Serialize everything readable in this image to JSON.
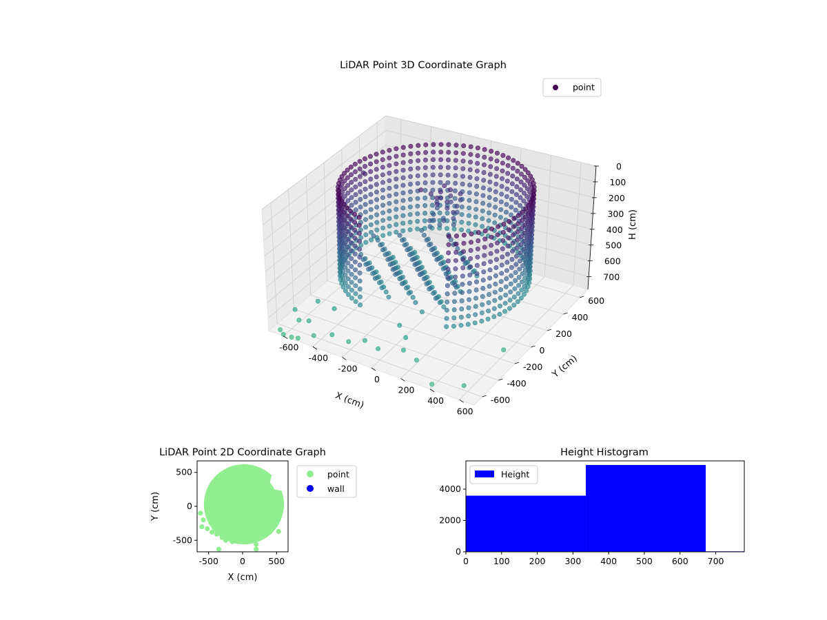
{
  "chart_data": [
    {
      "id": "3d",
      "type": "scatter",
      "title": "LiDAR Point 3D Coordinate Graph",
      "xlabel": "X (cm)",
      "ylabel": "Y (cm)",
      "zlabel": "H (cm)",
      "xlim": [
        -700,
        700
      ],
      "ylim": [
        -700,
        700
      ],
      "zlim": [
        0,
        780
      ],
      "z_axis_inverted": true,
      "xticks": [
        -600,
        -400,
        -200,
        0,
        200,
        400,
        600
      ],
      "yticks": [
        -600,
        -400,
        -200,
        0,
        200,
        400,
        600
      ],
      "zticks": [
        0,
        100,
        200,
        300,
        400,
        500,
        600,
        700
      ],
      "grid": true,
      "colormap": "viridis (colored by height)",
      "legend": {
        "position": "top-right",
        "entries": [
          {
            "label": "point",
            "color": "#440154"
          }
        ]
      },
      "series": [
        {
          "name": "point",
          "description": "Dense cylindrical ring of points, radius ~560 cm, H 0 to ~560 cm with an open front; a concentrated cluster around x=-150..50, y=150..350 at low H; scattered outliers near the floor.",
          "ring": {
            "center_x": 20,
            "center_y": 30,
            "radius": 560,
            "h_range": [
              0,
              560
            ],
            "open_angle_range_deg": [
              -110,
              -55
            ]
          },
          "floor_cluster": {
            "x_range": [
              -350,
              250
            ],
            "y_range": [
              -350,
              200
            ],
            "h_range": [
              360,
              560
            ]
          },
          "outliers": [
            {
              "x": -620,
              "y": -520,
              "h": 700
            },
            {
              "x": -560,
              "y": -580,
              "h": 720
            },
            {
              "x": -480,
              "y": -600,
              "h": 690
            },
            {
              "x": -420,
              "y": -650,
              "h": 740
            },
            {
              "x": -300,
              "y": -640,
              "h": 700
            },
            {
              "x": -200,
              "y": -620,
              "h": 720
            },
            {
              "x": -100,
              "y": -600,
              "h": 690
            },
            {
              "x": 0,
              "y": -620,
              "h": 700
            },
            {
              "x": 150,
              "y": -580,
              "h": 680
            },
            {
              "x": 250,
              "y": -600,
              "h": 700
            },
            {
              "x": -520,
              "y": -420,
              "h": 660
            },
            {
              "x": -380,
              "y": -470,
              "h": 640
            },
            {
              "x": 50,
              "y": -450,
              "h": 620
            },
            {
              "x": 120,
              "y": -500,
              "h": 650
            },
            {
              "x": -650,
              "y": -650,
              "h": 780
            },
            {
              "x": -600,
              "y": -700,
              "h": 770
            },
            {
              "x": -550,
              "y": -690,
              "h": 775
            },
            {
              "x": -500,
              "y": -700,
              "h": 760
            },
            {
              "x": 400,
              "y": -680,
              "h": 760
            },
            {
              "x": 600,
              "y": -650,
              "h": 720
            },
            {
              "x": -560,
              "y": 200,
              "h": 120
            },
            {
              "x": 620,
              "y": -200,
              "h": 720
            }
          ]
        }
      ]
    },
    {
      "id": "2d",
      "type": "scatter",
      "title": "LiDAR Point 2D Coordinate Graph",
      "xlabel": "X (cm)",
      "ylabel": "Y (cm)",
      "xlim": [
        -670,
        670
      ],
      "ylim": [
        -670,
        670
      ],
      "xticks": [
        -500,
        0,
        500
      ],
      "yticks": [
        -500,
        0,
        500
      ],
      "legend": {
        "position": "outside-right",
        "entries": [
          {
            "label": "point",
            "color": "#90ee90"
          },
          {
            "label": "wall",
            "color": "#0000ff"
          }
        ]
      },
      "series": [
        {
          "name": "point",
          "color": "#90ee90",
          "description": "Dense disk of points with radius ~560 cm centered near (20, 30), with a notch near (350, 200) and scattered points below",
          "points": [
            {
              "x": -600,
              "y": -300
            },
            {
              "x": -520,
              "y": -330
            },
            {
              "x": -450,
              "y": -380
            },
            {
              "x": -380,
              "y": -410
            },
            {
              "x": -300,
              "y": -460
            },
            {
              "x": -250,
              "y": -500
            },
            {
              "x": -200,
              "y": -430
            },
            {
              "x": -120,
              "y": -480
            },
            {
              "x": -60,
              "y": -400
            },
            {
              "x": 0,
              "y": -520
            },
            {
              "x": 60,
              "y": -420
            },
            {
              "x": 120,
              "y": -470
            },
            {
              "x": 200,
              "y": -560
            },
            {
              "x": 260,
              "y": -430
            },
            {
              "x": 320,
              "y": -350
            },
            {
              "x": 380,
              "y": -300
            },
            {
              "x": 430,
              "y": -220
            },
            {
              "x": 500,
              "y": -110
            },
            {
              "x": 530,
              "y": -370
            },
            {
              "x": -350,
              "y": -630
            },
            {
              "x": 200,
              "y": -630
            },
            {
              "x": -620,
              "y": -100
            },
            {
              "x": -580,
              "y": -200
            },
            {
              "x": 450,
              "y": -120
            },
            {
              "x": 400,
              "y": -380
            },
            {
              "x": -150,
              "y": -520
            }
          ]
        },
        {
          "name": "wall",
          "color": "#0000ff",
          "points": []
        }
      ]
    },
    {
      "id": "hist",
      "type": "bar",
      "title": "Height Histogram",
      "xlabel": "",
      "ylabel": "",
      "xlim": [
        0,
        780
      ],
      "ylim": [
        0,
        5800
      ],
      "xticks": [
        0,
        100,
        200,
        300,
        400,
        500,
        600,
        700
      ],
      "yticks": [
        0,
        2000,
        4000
      ],
      "legend": {
        "position": "top-left",
        "entries": [
          {
            "label": "Height",
            "color": "#0000ff"
          }
        ]
      },
      "series": [
        {
          "name": "Height",
          "color": "#0000ff",
          "bins": [
            {
              "x0": 0,
              "x1": 336,
              "value": 3580
            },
            {
              "x0": 336,
              "x1": 672,
              "value": 5540
            },
            {
              "x0": 672,
              "x1": 780,
              "value": 30
            }
          ]
        }
      ]
    }
  ]
}
